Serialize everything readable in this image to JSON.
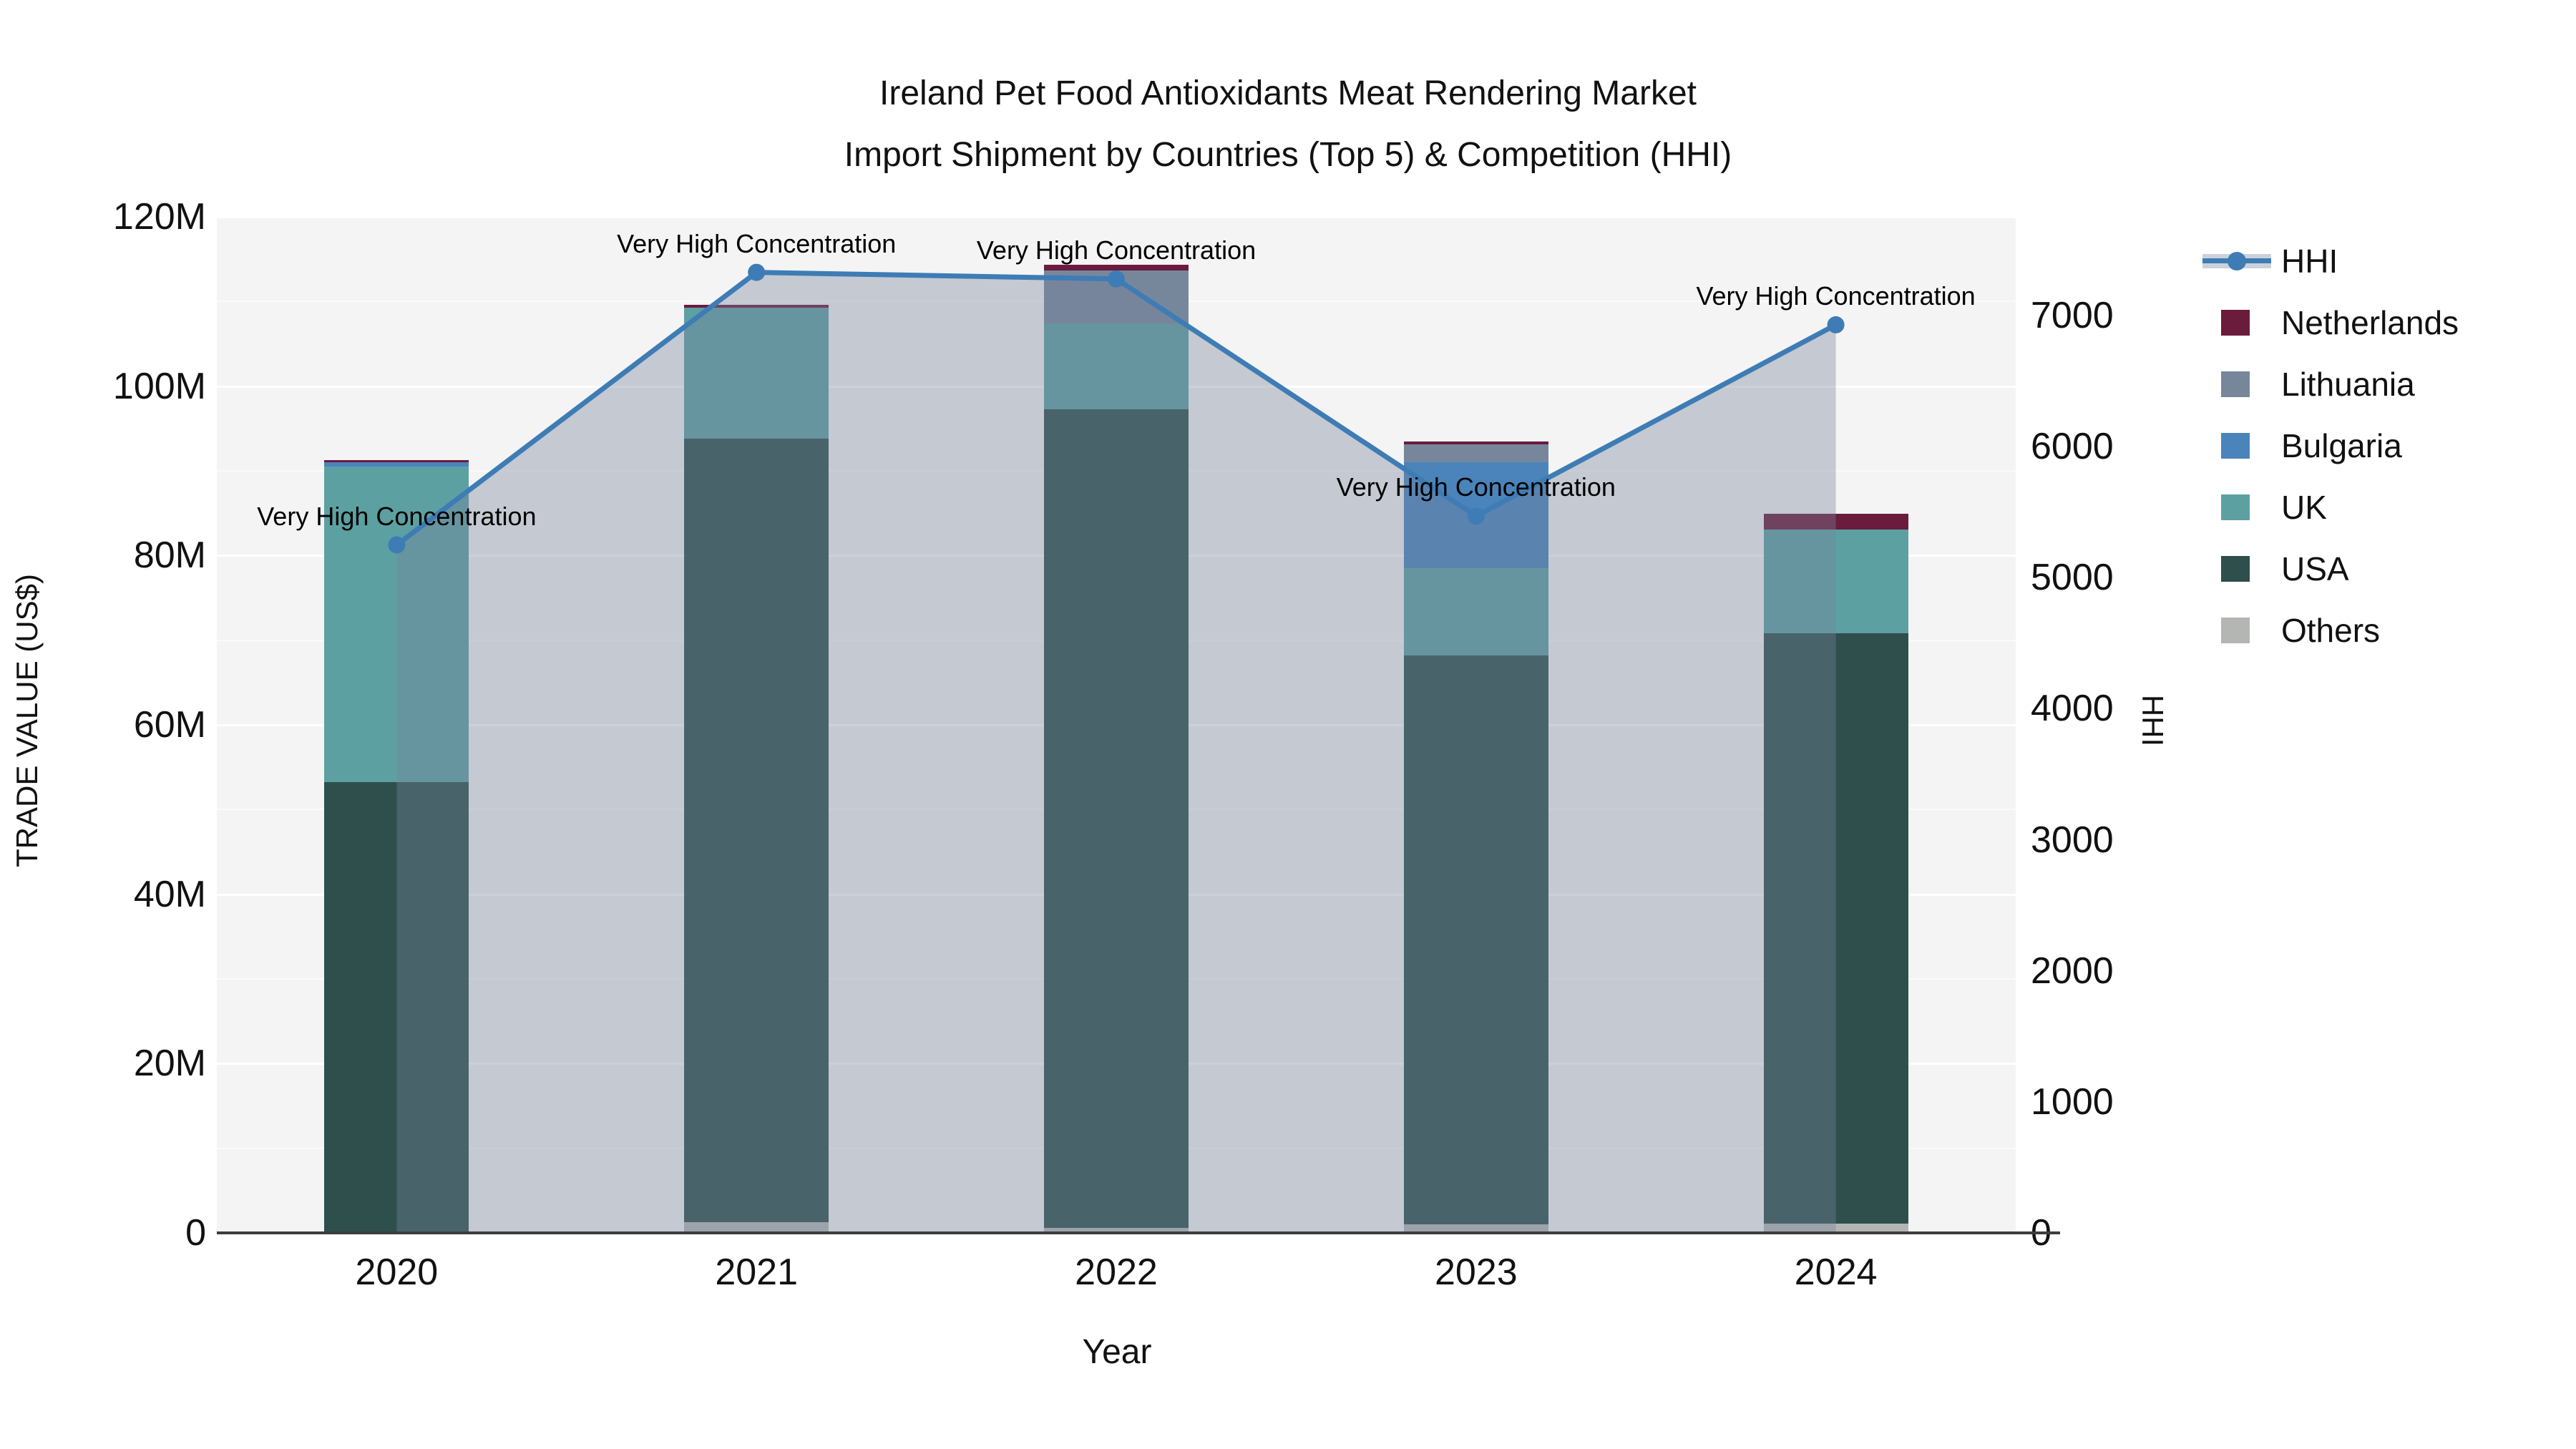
{
  "title": {
    "line1": "Ireland Pet Food Antioxidants Meat Rendering Market",
    "line2": "Import Shipment by Countries (Top 5) & Competition (HHI)"
  },
  "axes": {
    "left": {
      "title": "TRADE VALUE (US$)",
      "tick_labels": [
        "0",
        "20M",
        "40M",
        "60M",
        "80M",
        "100M",
        "120M"
      ],
      "tick_values": [
        0,
        20,
        40,
        60,
        80,
        100,
        120
      ]
    },
    "right": {
      "title": "HHI",
      "tick_labels": [
        "0",
        "1000",
        "2000",
        "3000",
        "4000",
        "5000",
        "6000",
        "7000"
      ],
      "tick_values": [
        0,
        1000,
        2000,
        3000,
        4000,
        5000,
        6000,
        7000
      ]
    },
    "x": {
      "title": "Year",
      "categories": [
        "2020",
        "2021",
        "2022",
        "2023",
        "2024"
      ]
    }
  },
  "legend": [
    {
      "label": "HHI",
      "type": "line",
      "color": "#3E7CB5"
    },
    {
      "label": "Netherlands",
      "type": "swatch",
      "color": "#6B1B3C"
    },
    {
      "label": "Lithuania",
      "type": "swatch",
      "color": "#77879B"
    },
    {
      "label": "Bulgaria",
      "type": "swatch",
      "color": "#4A84BB"
    },
    {
      "label": "UK",
      "type": "swatch",
      "color": "#5DA0A2"
    },
    {
      "label": "USA",
      "type": "swatch",
      "color": "#2E4F4C"
    },
    {
      "label": "Others",
      "type": "swatch",
      "color": "#B4B6B3"
    }
  ],
  "colors": {
    "Netherlands": "#6B1B3C",
    "Lithuania": "#77879B",
    "Bulgaria": "#4A84BB",
    "UK": "#5DA0A2",
    "USA": "#2E4F4C",
    "Others": "#B4B6B3",
    "hhi_line": "#3E7CB5",
    "hhi_area": "rgba(119,131,156,0.38)",
    "plot_bg": "#f4f4f4"
  },
  "chart_data": {
    "type": "combo",
    "bar": {
      "type": "bar",
      "stacked": true,
      "unit": "Million US$",
      "categories": [
        "2020",
        "2021",
        "2022",
        "2023",
        "2024"
      ],
      "stack_order_bottom_to_top": [
        "Others",
        "USA",
        "UK",
        "Bulgaria",
        "Lithuania",
        "Netherlands"
      ],
      "series": [
        {
          "name": "Others",
          "values": [
            0,
            1.3,
            0.6,
            1.0,
            1.1
          ]
        },
        {
          "name": "USA",
          "values": [
            53.2,
            92.5,
            96.7,
            67.2,
            69.7
          ]
        },
        {
          "name": "UK",
          "values": [
            37.3,
            15.5,
            10.1,
            10.3,
            12.3
          ]
        },
        {
          "name": "Bulgaria",
          "values": [
            0.5,
            0,
            0,
            12.5,
            0
          ]
        },
        {
          "name": "Lithuania",
          "values": [
            0,
            0,
            6.3,
            2.1,
            0
          ]
        },
        {
          "name": "Netherlands",
          "values": [
            0.3,
            0.3,
            0.6,
            0.4,
            1.8
          ]
        }
      ],
      "totals": [
        91.3,
        109.6,
        114.3,
        93.5,
        84.9
      ],
      "ylim": [
        0,
        120
      ],
      "ylabel": "TRADE VALUE (US$)"
    },
    "line": {
      "type": "line",
      "name": "HHI",
      "x": [
        "2020",
        "2021",
        "2022",
        "2023",
        "2024"
      ],
      "values": [
        5250,
        7330,
        7280,
        5470,
        6930
      ],
      "area": true,
      "markers": true,
      "ylim": [
        0,
        7754
      ],
      "ylabel": "HHI",
      "annotations": [
        "Very High Concentration",
        "Very High Concentration",
        "Very High Concentration",
        "Very High Concentration",
        "Very High Concentration"
      ]
    }
  }
}
